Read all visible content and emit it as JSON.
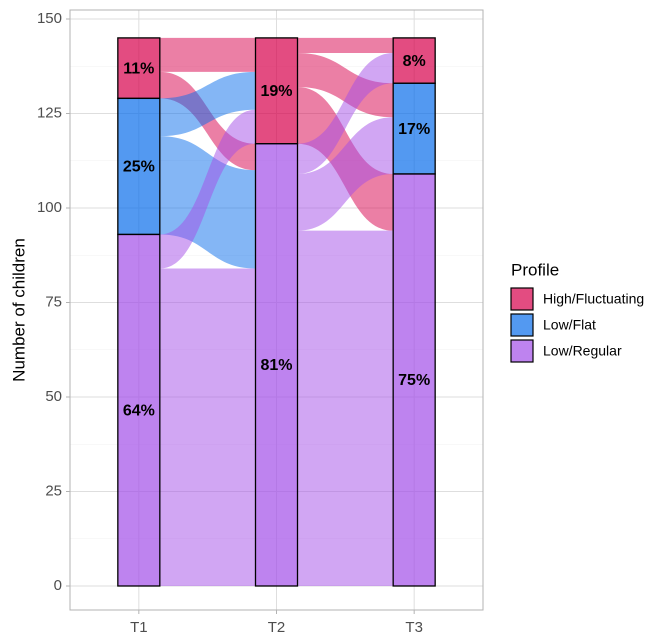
{
  "chart_data": {
    "type": "alluvial",
    "y_label": "Number of children",
    "legend_title": "Profile",
    "categories": [
      "T1",
      "T2",
      "T3"
    ],
    "series": [
      {
        "name": "High/Fluctuating",
        "color": "#D7004B",
        "values": [
          16,
          28,
          12
        ],
        "value_labels": [
          "11%",
          "19%",
          "8%"
        ]
      },
      {
        "name": "Low/Flat",
        "color": "#0A6EEB",
        "values": [
          36,
          0,
          24
        ],
        "value_labels": [
          "25%",
          null,
          "17%"
        ]
      },
      {
        "name": "Low/Regular",
        "color": "#A34EE8",
        "values": [
          93,
          117,
          109
        ],
        "value_labels": [
          "64%",
          "81%",
          "75%"
        ]
      }
    ],
    "flows": [
      {
        "stage": 0,
        "from": 0,
        "to": 0,
        "value": 9
      },
      {
        "stage": 0,
        "from": 0,
        "to": 2,
        "value": 7
      },
      {
        "stage": 0,
        "from": 1,
        "to": 0,
        "value": 10
      },
      {
        "stage": 0,
        "from": 1,
        "to": 2,
        "value": 26
      },
      {
        "stage": 0,
        "from": 2,
        "to": 0,
        "value": 9
      },
      {
        "stage": 0,
        "from": 2,
        "to": 2,
        "value": 84
      },
      {
        "stage": 1,
        "from": 0,
        "to": 0,
        "value": 4
      },
      {
        "stage": 1,
        "from": 0,
        "to": 1,
        "value": 9
      },
      {
        "stage": 1,
        "from": 0,
        "to": 2,
        "value": 15
      },
      {
        "stage": 1,
        "from": 2,
        "to": 0,
        "value": 8
      },
      {
        "stage": 1,
        "from": 2,
        "to": 1,
        "value": 15
      },
      {
        "stage": 1,
        "from": 2,
        "to": 2,
        "value": 94
      }
    ],
    "ylim": [
      -6.35,
      152.38
    ],
    "yticks": [
      0,
      25,
      50,
      75,
      100,
      125,
      150
    ],
    "minor_yticks": [
      12.5,
      37.5,
      62.5,
      87.5,
      112.5,
      137.5
    ],
    "grid": true,
    "legend_position": "right"
  }
}
